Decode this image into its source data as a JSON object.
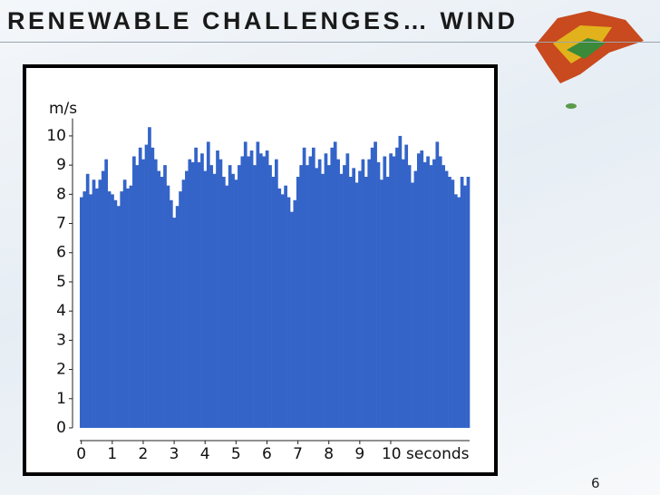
{
  "title": "RENEWABLE CHALLENGES… WIND",
  "page_number": "6",
  "chart_data": {
    "type": "bar",
    "y_label": "m/s",
    "color": "#3464c8",
    "xlim": [
      -0.05,
      12.55
    ],
    "ylim": [
      -0.2,
      10.6
    ],
    "xticks": [
      0,
      1,
      2,
      3,
      4,
      5,
      6,
      7,
      8,
      9,
      {
        "value": 10,
        "label": "10 seconds"
      }
    ],
    "yticks": [
      0,
      1,
      2,
      3,
      4,
      5,
      6,
      7,
      8,
      9,
      10
    ],
    "grid": false,
    "x": [
      0,
      0.1,
      0.2,
      0.3,
      0.4,
      0.5,
      0.6,
      0.7,
      0.8,
      0.9,
      1,
      1.1,
      1.2,
      1.3,
      1.4,
      1.5,
      1.6,
      1.7,
      1.8,
      1.9,
      2,
      2.1,
      2.2,
      2.3,
      2.4,
      2.5,
      2.6,
      2.7,
      2.8,
      2.9,
      3,
      3.1,
      3.2,
      3.3,
      3.4,
      3.5,
      3.6,
      3.7,
      3.8,
      3.9,
      4,
      4.1,
      4.2,
      4.3,
      4.4,
      4.5,
      4.6,
      4.7,
      4.8,
      4.9,
      5,
      5.1,
      5.2,
      5.3,
      5.4,
      5.5,
      5.6,
      5.7,
      5.8,
      5.9,
      6,
      6.1,
      6.2,
      6.3,
      6.4,
      6.5,
      6.6,
      6.7,
      6.8,
      6.9,
      7,
      7.1,
      7.2,
      7.3,
      7.4,
      7.5,
      7.6,
      7.7,
      7.8,
      7.9,
      8,
      8.1,
      8.2,
      8.3,
      8.4,
      8.5,
      8.6,
      8.7,
      8.8,
      8.9,
      9,
      9.1,
      9.2,
      9.3,
      9.4,
      9.5,
      9.6,
      9.7,
      9.8,
      9.9,
      10,
      10.1,
      10.2,
      10.3,
      10.4,
      10.5,
      10.6,
      10.7,
      10.8,
      10.9,
      11,
      11.1,
      11.2,
      11.3,
      11.4,
      11.5,
      11.6,
      11.7,
      11.8,
      11.9,
      12,
      12.1,
      12.2,
      12.3,
      12.4,
      12.5
    ],
    "values": [
      7.9,
      8.1,
      8.7,
      8.0,
      8.5,
      8.2,
      8.5,
      8.8,
      9.2,
      8.1,
      8.0,
      7.8,
      7.6,
      8.1,
      8.5,
      8.2,
      8.3,
      9.3,
      9.0,
      9.6,
      9.2,
      9.7,
      10.3,
      9.6,
      9.2,
      8.8,
      8.6,
      9.0,
      8.3,
      7.8,
      7.2,
      7.6,
      8.1,
      8.5,
      8.8,
      9.2,
      9.1,
      9.6,
      9.1,
      9.4,
      8.8,
      9.8,
      9.0,
      8.7,
      9.5,
      9.2,
      8.6,
      8.3,
      9.0,
      8.7,
      8.5,
      9.0,
      9.3,
      9.8,
      9.3,
      9.5,
      9.0,
      9.8,
      9.4,
      9.3,
      9.5,
      9.0,
      8.6,
      9.2,
      8.2,
      8.0,
      8.3,
      7.9,
      7.4,
      7.8,
      8.6,
      9.0,
      9.6,
      9.0,
      9.3,
      9.6,
      8.9,
      9.2,
      8.7,
      9.4,
      9.0,
      9.6,
      9.8,
      9.2,
      8.7,
      9.0,
      9.4,
      8.6,
      8.9,
      8.4,
      8.8,
      9.2,
      8.6,
      9.2,
      9.6,
      9.8,
      9.1,
      8.5,
      9.3,
      8.6,
      9.4,
      9.3,
      9.6,
      10.0,
      9.2,
      9.7,
      9.0,
      8.4,
      8.8,
      9.4,
      9.5,
      9.1,
      9.3,
      9.0,
      9.2,
      9.8,
      9.3,
      9.0,
      8.8,
      8.6,
      8.5,
      8.0,
      7.9,
      8.6,
      8.3,
      8.6
    ]
  }
}
